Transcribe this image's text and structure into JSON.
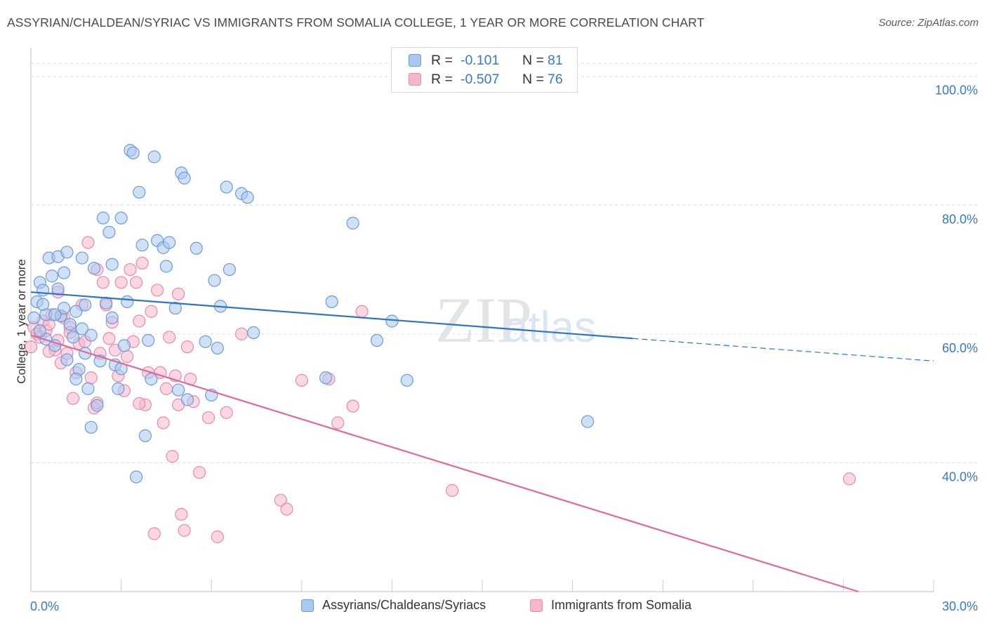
{
  "title": "ASSYRIAN/CHALDEAN/SYRIAC VS IMMIGRANTS FROM SOMALIA COLLEGE, 1 YEAR OR MORE CORRELATION CHART",
  "source": "Source: ZipAtlas.com",
  "watermark": {
    "zip": "ZIP",
    "atlas": "atlas"
  },
  "legend": {
    "rows": [
      {
        "r_label": "R =",
        "r_value": "-0.101",
        "n_label": "N =",
        "n_value": "81"
      },
      {
        "r_label": "R =",
        "r_value": "-0.507",
        "n_label": "N =",
        "n_value": "76"
      }
    ]
  },
  "colors": {
    "blue_fill": "#a9c8f0",
    "blue_stroke": "#6a9bdc",
    "blue_line": "#2f74c8",
    "pink_fill": "#f5b6cb",
    "pink_stroke": "#e98aab",
    "pink_line": "#e0689a",
    "axis_text": "#3a78c9",
    "grid": "#d9dde3"
  },
  "chart_data": {
    "type": "scatter",
    "title": "ASSYRIAN/CHALDEAN/SYRIAC VS IMMIGRANTS FROM SOMALIA COLLEGE, 1 YEAR OR MORE CORRELATION CHART",
    "xlabel": "",
    "ylabel": "College, 1 year or more",
    "xlim": [
      0,
      30
    ],
    "ylim": [
      20,
      104
    ],
    "x_tick_labels": [
      "0.0%",
      "30.0%"
    ],
    "y_ticks": [
      40,
      60,
      80,
      100
    ],
    "y_tick_labels": [
      "40.0%",
      "60.0%",
      "80.0%",
      "100.0%"
    ],
    "grid": true,
    "legend_position": "top-center",
    "series": [
      {
        "name": "Assyrians/Chaldeans/Syriacs",
        "color": "blue",
        "trend": {
          "x": [
            0.0,
            20.0
          ],
          "y": [
            66.5,
            59.3
          ],
          "dashed_to": [
            30.0,
            55.8
          ]
        },
        "points": [
          [
            0.1,
            62.5
          ],
          [
            0.2,
            65.0
          ],
          [
            0.3,
            68.0
          ],
          [
            0.4,
            66.8
          ],
          [
            0.5,
            63.0
          ],
          [
            0.5,
            59.2
          ],
          [
            0.6,
            71.8
          ],
          [
            0.7,
            69.0
          ],
          [
            0.8,
            58.2
          ],
          [
            0.9,
            72.0
          ],
          [
            1.0,
            62.8
          ],
          [
            1.1,
            64.0
          ],
          [
            1.2,
            72.7
          ],
          [
            1.3,
            61.5
          ],
          [
            1.4,
            59.5
          ],
          [
            1.5,
            63.5
          ],
          [
            1.6,
            54.5
          ],
          [
            1.7,
            71.8
          ],
          [
            1.8,
            64.5
          ],
          [
            1.9,
            51.5
          ],
          [
            2.0,
            59.8
          ],
          [
            2.1,
            70.2
          ],
          [
            2.2,
            48.9
          ],
          [
            2.4,
            78.0
          ],
          [
            2.5,
            64.8
          ],
          [
            2.6,
            75.8
          ],
          [
            2.7,
            62.5
          ],
          [
            2.8,
            55.2
          ],
          [
            2.9,
            51.5
          ],
          [
            3.0,
            78.0
          ],
          [
            3.1,
            58.2
          ],
          [
            3.2,
            65.0
          ],
          [
            3.3,
            88.5
          ],
          [
            3.4,
            88.1
          ],
          [
            3.5,
            37.8
          ],
          [
            3.6,
            82.0
          ],
          [
            3.7,
            73.8
          ],
          [
            3.8,
            44.2
          ],
          [
            3.9,
            59.0
          ],
          [
            4.0,
            53.0
          ],
          [
            4.1,
            87.5
          ],
          [
            4.2,
            74.5
          ],
          [
            4.4,
            73.4
          ],
          [
            4.5,
            70.5
          ],
          [
            4.6,
            74.2
          ],
          [
            4.8,
            64.0
          ],
          [
            4.9,
            51.3
          ],
          [
            5.0,
            85.0
          ],
          [
            5.1,
            84.2
          ],
          [
            5.2,
            49.8
          ],
          [
            5.5,
            73.3
          ],
          [
            5.8,
            58.8
          ],
          [
            6.0,
            50.5
          ],
          [
            6.1,
            68.3
          ],
          [
            6.2,
            57.8
          ],
          [
            6.3,
            64.3
          ],
          [
            6.5,
            82.8
          ],
          [
            6.6,
            70.0
          ],
          [
            7.0,
            81.8
          ],
          [
            7.2,
            81.2
          ],
          [
            7.4,
            60.2
          ],
          [
            9.8,
            53.2
          ],
          [
            10.0,
            65.0
          ],
          [
            10.7,
            77.2
          ],
          [
            11.5,
            59.0
          ],
          [
            12.0,
            62.0
          ],
          [
            12.5,
            52.8
          ],
          [
            18.5,
            46.4
          ],
          [
            0.3,
            60.5
          ],
          [
            0.8,
            63.0
          ],
          [
            1.2,
            56.0
          ],
          [
            1.5,
            53.0
          ],
          [
            1.8,
            57.0
          ],
          [
            2.0,
            45.5
          ],
          [
            2.3,
            55.8
          ],
          [
            0.9,
            67.0
          ],
          [
            1.1,
            69.5
          ],
          [
            2.7,
            70.8
          ],
          [
            0.4,
            64.6
          ],
          [
            1.7,
            60.8
          ],
          [
            3.0,
            54.6
          ]
        ]
      },
      {
        "name": "Immigrants from Somalia",
        "color": "pink",
        "trend": {
          "x": [
            0.0,
            27.5
          ],
          "y": [
            59.8,
            20.0
          ]
        },
        "points": [
          [
            0.0,
            58.0
          ],
          [
            0.1,
            61.0
          ],
          [
            0.2,
            60.0
          ],
          [
            0.3,
            59.5
          ],
          [
            0.4,
            62.0
          ],
          [
            0.5,
            60.5
          ],
          [
            0.6,
            61.5
          ],
          [
            0.7,
            63.0
          ],
          [
            0.8,
            57.5
          ],
          [
            0.9,
            59.0
          ],
          [
            1.0,
            55.5
          ],
          [
            1.1,
            62.5
          ],
          [
            1.2,
            57.0
          ],
          [
            1.3,
            61.0
          ],
          [
            1.4,
            50.0
          ],
          [
            1.5,
            54.0
          ],
          [
            1.6,
            58.5
          ],
          [
            1.7,
            64.5
          ],
          [
            1.8,
            58.8
          ],
          [
            1.9,
            74.2
          ],
          [
            2.0,
            53.2
          ],
          [
            2.1,
            48.5
          ],
          [
            2.2,
            70.0
          ],
          [
            2.3,
            57.0
          ],
          [
            2.4,
            68.0
          ],
          [
            2.5,
            64.5
          ],
          [
            2.6,
            59.3
          ],
          [
            2.7,
            61.8
          ],
          [
            2.8,
            57.5
          ],
          [
            2.9,
            53.5
          ],
          [
            3.0,
            68.0
          ],
          [
            3.1,
            51.2
          ],
          [
            3.2,
            56.5
          ],
          [
            3.3,
            70.0
          ],
          [
            3.4,
            58.8
          ],
          [
            3.5,
            68.0
          ],
          [
            3.6,
            62.0
          ],
          [
            3.7,
            71.0
          ],
          [
            3.8,
            49.0
          ],
          [
            3.9,
            54.0
          ],
          [
            4.0,
            63.5
          ],
          [
            4.1,
            29.0
          ],
          [
            4.2,
            66.8
          ],
          [
            4.3,
            54.0
          ],
          [
            4.4,
            46.2
          ],
          [
            4.5,
            51.5
          ],
          [
            4.6,
            59.5
          ],
          [
            4.7,
            41.0
          ],
          [
            4.8,
            53.5
          ],
          [
            4.9,
            66.2
          ],
          [
            5.0,
            32.0
          ],
          [
            5.1,
            29.5
          ],
          [
            5.2,
            58.0
          ],
          [
            5.3,
            53.0
          ],
          [
            5.4,
            49.5
          ],
          [
            5.6,
            38.5
          ],
          [
            5.9,
            47.0
          ],
          [
            6.2,
            28.5
          ],
          [
            6.5,
            47.8
          ],
          [
            7.0,
            60.0
          ],
          [
            8.3,
            34.2
          ],
          [
            8.5,
            32.8
          ],
          [
            9.0,
            52.8
          ],
          [
            9.9,
            53.0
          ],
          [
            10.2,
            46.2
          ],
          [
            10.7,
            48.8
          ],
          [
            11.0,
            63.5
          ],
          [
            14.0,
            35.7
          ],
          [
            27.2,
            37.5
          ],
          [
            0.9,
            66.5
          ],
          [
            1.3,
            60.2
          ],
          [
            2.2,
            49.3
          ],
          [
            3.6,
            49.2
          ],
          [
            4.9,
            49.0
          ],
          [
            1.0,
            62.8
          ],
          [
            0.6,
            57.3
          ]
        ]
      }
    ]
  }
}
